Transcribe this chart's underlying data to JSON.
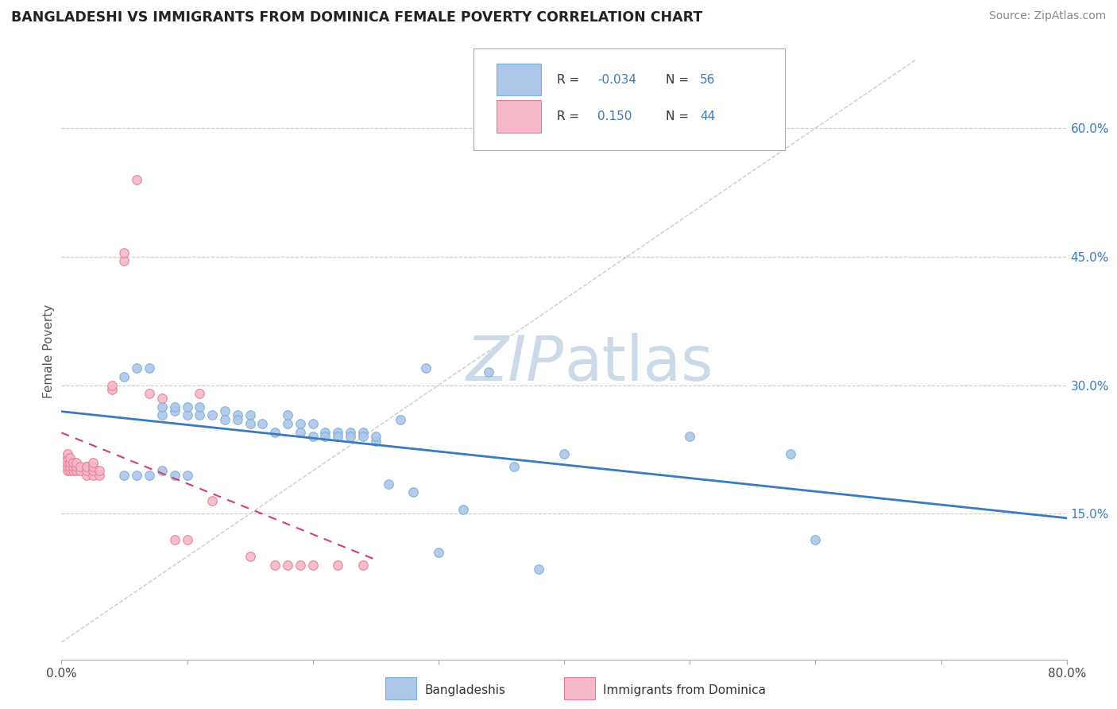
{
  "title": "BANGLADESHI VS IMMIGRANTS FROM DOMINICA FEMALE POVERTY CORRELATION CHART",
  "source": "Source: ZipAtlas.com",
  "ylabel": "Female Poverty",
  "ytick_labels": [
    "15.0%",
    "30.0%",
    "45.0%",
    "60.0%"
  ],
  "ytick_values": [
    0.15,
    0.3,
    0.45,
    0.6
  ],
  "xlim": [
    0.0,
    0.8
  ],
  "ylim": [
    -0.02,
    0.7
  ],
  "blue_color": "#aec6e8",
  "pink_color": "#f5b8c8",
  "blue_edge": "#7aafd4",
  "pink_edge": "#e87a96",
  "trend_blue_color": "#3a7abf",
  "trend_pink_color": "#d44060",
  "diag_color": "#cccccc",
  "watermark_color": "#ccd9e8",
  "grid_color": "#cccccc",
  "blue_scatter_x": [
    0.02,
    0.05,
    0.06,
    0.07,
    0.08,
    0.08,
    0.09,
    0.09,
    0.1,
    0.1,
    0.11,
    0.11,
    0.12,
    0.13,
    0.13,
    0.14,
    0.14,
    0.15,
    0.15,
    0.16,
    0.17,
    0.18,
    0.18,
    0.19,
    0.19,
    0.2,
    0.2,
    0.21,
    0.21,
    0.22,
    0.22,
    0.23,
    0.23,
    0.24,
    0.24,
    0.25,
    0.25,
    0.26,
    0.27,
    0.28,
    0.29,
    0.3,
    0.32,
    0.34,
    0.36,
    0.38,
    0.4,
    0.5,
    0.58,
    0.6,
    0.05,
    0.06,
    0.07,
    0.08,
    0.09,
    0.1
  ],
  "blue_scatter_y": [
    0.205,
    0.31,
    0.32,
    0.32,
    0.265,
    0.275,
    0.27,
    0.275,
    0.265,
    0.275,
    0.265,
    0.275,
    0.265,
    0.27,
    0.26,
    0.265,
    0.26,
    0.265,
    0.255,
    0.255,
    0.245,
    0.265,
    0.255,
    0.255,
    0.245,
    0.24,
    0.255,
    0.245,
    0.24,
    0.245,
    0.24,
    0.245,
    0.24,
    0.245,
    0.24,
    0.235,
    0.24,
    0.185,
    0.26,
    0.175,
    0.32,
    0.105,
    0.155,
    0.315,
    0.205,
    0.085,
    0.22,
    0.24,
    0.22,
    0.12,
    0.195,
    0.195,
    0.195,
    0.2,
    0.195,
    0.195
  ],
  "pink_scatter_x": [
    0.005,
    0.005,
    0.005,
    0.005,
    0.005,
    0.007,
    0.007,
    0.007,
    0.007,
    0.009,
    0.009,
    0.009,
    0.012,
    0.012,
    0.012,
    0.015,
    0.015,
    0.02,
    0.02,
    0.02,
    0.025,
    0.025,
    0.025,
    0.025,
    0.03,
    0.03,
    0.04,
    0.04,
    0.05,
    0.05,
    0.06,
    0.07,
    0.08,
    0.09,
    0.1,
    0.11,
    0.12,
    0.15,
    0.17,
    0.18,
    0.19,
    0.2,
    0.22,
    0.24
  ],
  "pink_scatter_y": [
    0.2,
    0.205,
    0.21,
    0.215,
    0.22,
    0.2,
    0.205,
    0.21,
    0.215,
    0.2,
    0.205,
    0.21,
    0.2,
    0.205,
    0.21,
    0.2,
    0.205,
    0.195,
    0.2,
    0.205,
    0.195,
    0.2,
    0.205,
    0.21,
    0.195,
    0.2,
    0.295,
    0.3,
    0.445,
    0.455,
    0.54,
    0.29,
    0.285,
    0.12,
    0.12,
    0.29,
    0.165,
    0.1,
    0.09,
    0.09,
    0.09,
    0.09,
    0.09,
    0.09
  ]
}
